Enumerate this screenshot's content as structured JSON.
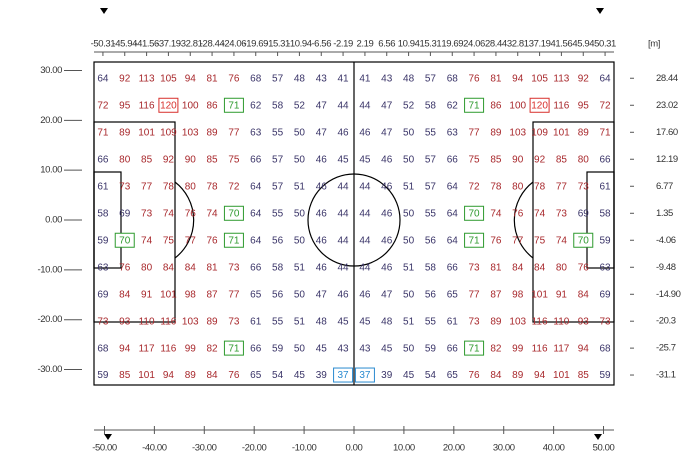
{
  "chart_data": {
    "type": "heatmap",
    "unit": "[m]",
    "x": [
      -50.31,
      -45.94,
      -41.56,
      -37.19,
      -32.81,
      -28.44,
      -24.06,
      -19.69,
      -15.31,
      -10.94,
      -6.56,
      -2.19,
      2.19,
      6.56,
      10.94,
      15.31,
      19.69,
      24.06,
      28.44,
      32.81,
      37.19,
      41.56,
      45.94,
      50.31
    ],
    "y": [
      28.44,
      23.02,
      {
        "value": 17.6,
        "label": "17.60"
      },
      12.19,
      6.77,
      1.35,
      -4.06,
      -9.48,
      {
        "value": -14.9,
        "label": "-14.90"
      },
      -20.3,
      -25.7,
      -31.1
    ],
    "xlim": [
      -52.1,
      52.1
    ],
    "ylim": [
      -33.1,
      31.7
    ],
    "xticks": [
      {
        "value": -50,
        "label": "-50.00"
      },
      {
        "value": -40,
        "label": "-40.00"
      },
      {
        "value": -30,
        "label": "-30.00"
      },
      {
        "value": -20,
        "label": "-20.00"
      },
      {
        "value": -10,
        "label": "-10.00"
      },
      {
        "value": 0,
        "label": "0.00"
      },
      {
        "value": 10,
        "label": "10.00"
      },
      {
        "value": 20,
        "label": "20.00"
      },
      {
        "value": 30,
        "label": "30.00"
      },
      {
        "value": 40,
        "label": "40.00"
      },
      {
        "value": 50,
        "label": "50.00"
      }
    ],
    "yticks": [
      {
        "value": 30,
        "label": "30.00"
      },
      {
        "value": 20,
        "label": "20.00"
      },
      {
        "value": 10,
        "label": "10.00"
      },
      {
        "value": 0,
        "label": "0.00"
      },
      {
        "value": -10,
        "label": "-10.00"
      },
      {
        "value": -20,
        "label": "-20.00"
      },
      {
        "value": -30,
        "label": "-30.00"
      }
    ],
    "values": [
      [
        64,
        92,
        113,
        105,
        94,
        81,
        76,
        68,
        57,
        48,
        43,
        41,
        41,
        43,
        48,
        57,
        68,
        76,
        81,
        94,
        105,
        113,
        92,
        64
      ],
      [
        72,
        95,
        116,
        120,
        100,
        86,
        71,
        62,
        58,
        52,
        47,
        44,
        44,
        47,
        52,
        58,
        62,
        71,
        86,
        100,
        120,
        116,
        95,
        72
      ],
      [
        71,
        89,
        101,
        109,
        103,
        89,
        77,
        63,
        55,
        50,
        47,
        46,
        46,
        47,
        50,
        55,
        63,
        77,
        89,
        103,
        109,
        101,
        89,
        71
      ],
      [
        66,
        80,
        85,
        92,
        90,
        85,
        75,
        66,
        57,
        50,
        46,
        45,
        45,
        46,
        50,
        57,
        66,
        75,
        85,
        90,
        92,
        85,
        80,
        66
      ],
      [
        61,
        73,
        77,
        78,
        80,
        78,
        72,
        64,
        57,
        51,
        46,
        44,
        44,
        46,
        51,
        57,
        64,
        72,
        78,
        80,
        78,
        77,
        73,
        61
      ],
      [
        58,
        69,
        73,
        74,
        76,
        74,
        70,
        64,
        55,
        50,
        46,
        44,
        44,
        46,
        50,
        55,
        64,
        70,
        74,
        76,
        74,
        73,
        69,
        58
      ],
      [
        59,
        70,
        74,
        75,
        77,
        76,
        71,
        64,
        56,
        50,
        46,
        44,
        44,
        46,
        50,
        56,
        64,
        71,
        76,
        77,
        75,
        74,
        70,
        59
      ],
      [
        63,
        76,
        80,
        84,
        84,
        81,
        73,
        66,
        58,
        51,
        46,
        44,
        44,
        46,
        51,
        58,
        66,
        73,
        81,
        84,
        84,
        80,
        76,
        63
      ],
      [
        69,
        84,
        91,
        101,
        98,
        87,
        77,
        65,
        56,
        50,
        47,
        46,
        46,
        47,
        50,
        56,
        65,
        77,
        87,
        98,
        101,
        91,
        84,
        69
      ],
      [
        73,
        93,
        110,
        116,
        103,
        89,
        73,
        61,
        55,
        51,
        48,
        45,
        45,
        48,
        51,
        55,
        61,
        73,
        89,
        103,
        116,
        110,
        93,
        73
      ],
      [
        68,
        94,
        117,
        116,
        99,
        82,
        71,
        66,
        59,
        50,
        45,
        43,
        43,
        45,
        50,
        59,
        66,
        71,
        82,
        99,
        116,
        117,
        94,
        68
      ],
      [
        59,
        85,
        101,
        94,
        89,
        84,
        76,
        65,
        54,
        45,
        39,
        37,
        37,
        39,
        45,
        54,
        65,
        76,
        84,
        89,
        94,
        101,
        85,
        59
      ]
    ],
    "color_scale": {
      "threshold": 70,
      "high": "#a8282c",
      "low": "#3a3468"
    },
    "boxes": [
      {
        "row": 1,
        "col": 3,
        "color": "#d8302c"
      },
      {
        "row": 1,
        "col": 20,
        "color": "#d8302c"
      },
      {
        "row": 1,
        "col": 6,
        "color": "#2e9a2e"
      },
      {
        "row": 1,
        "col": 17,
        "color": "#2e9a2e"
      },
      {
        "row": 5,
        "col": 6,
        "color": "#2e9a2e"
      },
      {
        "row": 5,
        "col": 17,
        "color": "#2e9a2e"
      },
      {
        "row": 6,
        "col": 1,
        "color": "#2e9a2e"
      },
      {
        "row": 6,
        "col": 22,
        "color": "#2e9a2e"
      },
      {
        "row": 6,
        "col": 6,
        "color": "#2e9a2e"
      },
      {
        "row": 6,
        "col": 17,
        "color": "#2e9a2e"
      },
      {
        "row": 10,
        "col": 6,
        "color": "#2e9a2e"
      },
      {
        "row": 10,
        "col": 17,
        "color": "#2e9a2e"
      },
      {
        "row": 11,
        "col": 11,
        "color": "#2a8ad0"
      },
      {
        "row": 11,
        "col": 12,
        "color": "#2a8ad0"
      }
    ]
  }
}
